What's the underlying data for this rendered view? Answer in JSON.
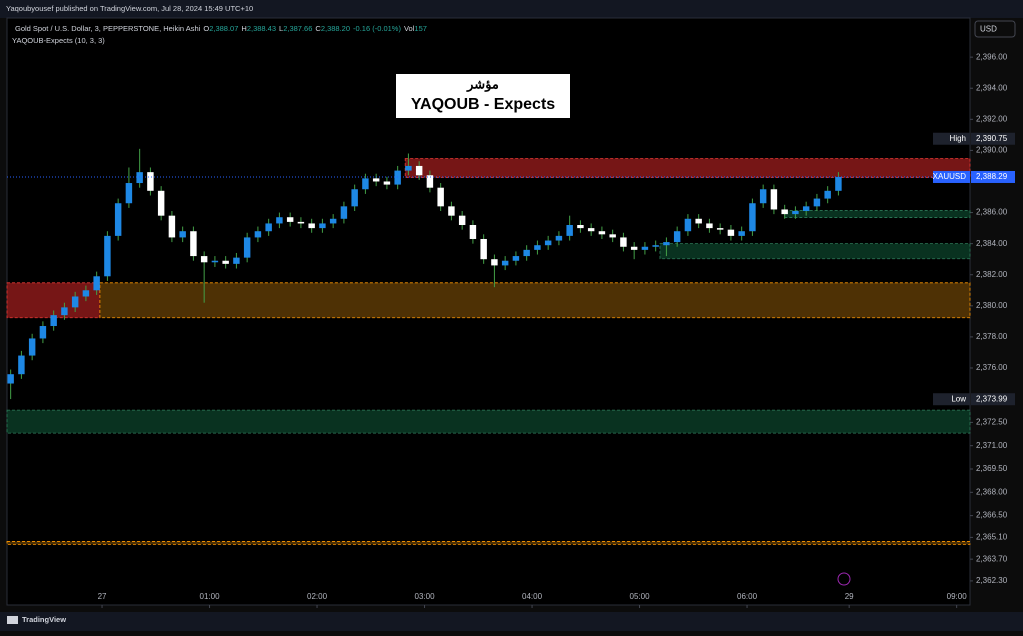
{
  "header": {
    "publisher": "Yaqoubyousef published on TradingView.com, Jul 28, 2024 15:49 UTC+10",
    "symbol": "Gold Spot / U.S. Dollar, 3, PEPPERSTONE, Heikin Ashi",
    "ohlc": [
      {
        "key": "O",
        "value": "2,388.07"
      },
      {
        "key": "H",
        "value": "2,388.43"
      },
      {
        "key": "L",
        "value": "2,387.66"
      },
      {
        "key": "C",
        "value": "2,388.20"
      }
    ],
    "change": "-0.16 (-0.01%)",
    "volume_key": "Vol",
    "volume": "157",
    "indicator": "YAQOUB-Expects (10, 3, 3)",
    "currency": "USD"
  },
  "footer": {
    "brand": "TradingView"
  },
  "chart_data": {
    "type": "candlestick",
    "title_arabic": "مؤشر",
    "title": "YAQOUB - Expects",
    "up_color": "#1e88e5",
    "down_color": "#ffffff",
    "wick_color": "#43a047",
    "x": [
      -0.85,
      -0.75,
      -0.65,
      -0.55,
      -0.45,
      -0.35,
      -0.25,
      -0.15,
      -0.05,
      0.05,
      0.15,
      0.25,
      0.35,
      0.45,
      0.55,
      0.65,
      0.75,
      0.85,
      0.95,
      1.05,
      1.15,
      1.25,
      1.35,
      1.45,
      1.55,
      1.65,
      1.75,
      1.85,
      1.95,
      2.05,
      2.15,
      2.25,
      2.35,
      2.45,
      2.55,
      2.65,
      2.75,
      2.85,
      2.95,
      3.05,
      3.15,
      3.25,
      3.35,
      3.45,
      3.55,
      3.65,
      3.75,
      3.85,
      3.95,
      4.05,
      4.15,
      4.25,
      4.35,
      4.45,
      4.55,
      4.65,
      4.75,
      4.85,
      4.95,
      5.05,
      5.15,
      5.25,
      5.35,
      5.45,
      5.55,
      5.65,
      5.75,
      5.85,
      5.95,
      6.05,
      6.15,
      6.25,
      6.35,
      6.45,
      6.55,
      6.65,
      6.75,
      6.85
    ],
    "open": [
      2375.0,
      2375.6,
      2376.8,
      2377.9,
      2378.7,
      2379.4,
      2379.9,
      2380.6,
      2381.0,
      2381.9,
      2384.5,
      2386.6,
      2387.9,
      2388.6,
      2387.4,
      2385.8,
      2384.4,
      2384.8,
      2383.2,
      2382.8,
      2382.9,
      2382.7,
      2383.1,
      2384.4,
      2384.8,
      2385.3,
      2385.7,
      2385.4,
      2385.3,
      2385.0,
      2385.3,
      2385.6,
      2386.4,
      2387.5,
      2388.2,
      2388.0,
      2387.8,
      2388.7,
      2389.0,
      2388.4,
      2387.6,
      2386.4,
      2385.8,
      2385.2,
      2384.3,
      2383.0,
      2382.6,
      2382.9,
      2383.2,
      2383.6,
      2383.9,
      2384.2,
      2384.5,
      2385.2,
      2385.0,
      2384.8,
      2384.6,
      2384.4,
      2383.8,
      2383.6,
      2383.8,
      2383.9,
      2384.1,
      2384.8,
      2385.6,
      2385.3,
      2385.0,
      2384.9,
      2384.5,
      2384.8,
      2386.6,
      2387.5,
      2386.2,
      2385.9,
      2386.1,
      2386.4,
      2386.9,
      2387.4
    ],
    "high": [
      2375.9,
      2377.1,
      2378.2,
      2379.0,
      2379.7,
      2380.2,
      2380.9,
      2381.3,
      2382.2,
      2384.8,
      2386.9,
      2388.9,
      2390.1,
      2388.9,
      2387.7,
      2386.1,
      2385.1,
      2385.1,
      2383.5,
      2383.2,
      2383.2,
      2383.4,
      2384.7,
      2385.1,
      2385.6,
      2386.0,
      2386.0,
      2385.7,
      2385.6,
      2385.6,
      2385.9,
      2386.7,
      2387.8,
      2388.5,
      2388.5,
      2388.3,
      2389.0,
      2389.8,
      2389.3,
      2388.7,
      2387.9,
      2386.7,
      2386.1,
      2385.5,
      2384.6,
      2383.3,
      2383.2,
      2383.5,
      2383.9,
      2384.2,
      2384.5,
      2384.8,
      2385.8,
      2385.5,
      2385.3,
      2385.1,
      2384.9,
      2384.7,
      2384.1,
      2384.1,
      2384.2,
      2384.4,
      2385.1,
      2385.9,
      2385.9,
      2385.6,
      2385.3,
      2385.2,
      2385.1,
      2386.9,
      2387.8,
      2387.8,
      2386.5,
      2386.4,
      2386.7,
      2387.2,
      2387.7,
      2388.6
    ],
    "low": [
      2374.0,
      2375.3,
      2376.5,
      2377.6,
      2378.4,
      2379.1,
      2379.6,
      2380.3,
      2380.7,
      2381.6,
      2384.2,
      2386.3,
      2387.6,
      2387.1,
      2385.5,
      2384.1,
      2384.1,
      2382.9,
      2380.2,
      2382.5,
      2382.4,
      2382.4,
      2382.8,
      2384.1,
      2384.5,
      2385.0,
      2385.1,
      2385.0,
      2384.7,
      2384.7,
      2385.0,
      2385.3,
      2386.1,
      2387.2,
      2387.7,
      2387.5,
      2387.5,
      2388.4,
      2388.1,
      2387.3,
      2386.1,
      2385.5,
      2384.9,
      2384.0,
      2382.7,
      2381.2,
      2382.3,
      2382.6,
      2382.9,
      2383.3,
      2383.6,
      2383.9,
      2384.2,
      2384.7,
      2384.5,
      2384.3,
      2384.1,
      2383.5,
      2383.0,
      2383.3,
      2383.5,
      2383.2,
      2383.8,
      2384.5,
      2385.0,
      2384.7,
      2384.6,
      2384.2,
      2384.2,
      2384.5,
      2386.3,
      2385.9,
      2385.6,
      2385.6,
      2385.8,
      2386.1,
      2386.6,
      2387.1
    ],
    "close": [
      2375.6,
      2376.8,
      2377.9,
      2378.7,
      2379.4,
      2379.9,
      2380.6,
      2381.0,
      2381.9,
      2384.5,
      2386.6,
      2387.9,
      2388.6,
      2387.4,
      2385.8,
      2384.4,
      2384.8,
      2383.2,
      2382.8,
      2382.9,
      2382.7,
      2383.1,
      2384.4,
      2384.8,
      2385.3,
      2385.7,
      2385.4,
      2385.3,
      2385.0,
      2385.3,
      2385.6,
      2386.4,
      2387.5,
      2388.2,
      2388.0,
      2387.8,
      2388.7,
      2389.0,
      2388.4,
      2387.6,
      2386.4,
      2385.8,
      2385.2,
      2384.3,
      2383.0,
      2382.6,
      2382.9,
      2383.2,
      2383.6,
      2383.9,
      2384.2,
      2384.5,
      2385.2,
      2385.0,
      2384.8,
      2384.6,
      2384.4,
      2383.8,
      2383.6,
      2383.8,
      2383.9,
      2384.1,
      2384.8,
      2385.6,
      2385.3,
      2385.0,
      2384.9,
      2384.5,
      2384.8,
      2386.6,
      2387.5,
      2386.2,
      2385.9,
      2386.1,
      2386.4,
      2386.9,
      2387.4,
      2388.29
    ],
    "zones": [
      {
        "color": "#8b1a1a",
        "border": "#e53935",
        "x": [
          2.82,
          8.074
        ],
        "y": [
          2388.26,
          2389.48
        ]
      },
      {
        "color": "#0b3b26",
        "border": "#2e7d5b",
        "x": [
          6.35,
          8.074
        ],
        "y": [
          2385.68,
          2386.13
        ]
      },
      {
        "color": "#0b3b26",
        "border": "#2e7d5b",
        "x": [
          5.19,
          8.074
        ],
        "y": [
          2383.03,
          2384.0
        ]
      },
      {
        "color": "#8b1a1a",
        "border": "#e53935",
        "x": [
          -0.884,
          -0.02
        ],
        "y": [
          2379.23,
          2381.48
        ]
      },
      {
        "color": "#5c3a06",
        "border": "#ff9800",
        "x": [
          -0.02,
          8.074
        ],
        "y": [
          2379.23,
          2381.48
        ]
      },
      {
        "color": "#0b3b26",
        "border": "#2e7d5b",
        "x": [
          -0.884,
          8.074
        ],
        "y": [
          2371.81,
          2373.29
        ]
      },
      {
        "color": "#5c3a06",
        "border": "#ff9800",
        "x": [
          -0.884,
          8.074
        ],
        "y": [
          2364.65,
          2364.84
        ]
      }
    ],
    "price_labels": [
      {
        "name": "High",
        "value": 2390.75,
        "label": "2,390.75",
        "color": "#1e222d"
      },
      {
        "name": "XAUUSD",
        "value": 2388.29,
        "label": "2,388.29",
        "color": "#2962ff"
      },
      {
        "name": "Low",
        "value": 2373.99,
        "label": "2,373.99",
        "color": "#1e222d"
      }
    ],
    "xlim": [
      -0.884,
      8.074
    ],
    "ylim": [
      2360.75,
      2398.39
    ],
    "xticks": [
      {
        "value": 0,
        "label": "27"
      },
      {
        "value": 1,
        "label": "01:00"
      },
      {
        "value": 2,
        "label": "02:00"
      },
      {
        "value": 3,
        "label": "03:00"
      },
      {
        "value": 4,
        "label": "04:00"
      },
      {
        "value": 5,
        "label": "05:00"
      },
      {
        "value": 6,
        "label": "06:00"
      },
      {
        "value": 6.95,
        "label": "29"
      },
      {
        "value": 7.95,
        "label": "09:00"
      }
    ],
    "yticks": [
      {
        "value": 2396,
        "label": "2,396.00"
      },
      {
        "value": 2394,
        "label": "2,394.00"
      },
      {
        "value": 2392,
        "label": "2,392.00"
      },
      {
        "value": 2390,
        "label": "2,390.00"
      },
      {
        "value": 2386,
        "label": "2,386.00"
      },
      {
        "value": 2384,
        "label": "2,384.00"
      },
      {
        "value": 2382,
        "label": "2,382.00"
      },
      {
        "value": 2380,
        "label": "2,380.00"
      },
      {
        "value": 2378,
        "label": "2,378.00"
      },
      {
        "value": 2376,
        "label": "2,376.00"
      },
      {
        "value": 2372.5,
        "label": "2,372.50"
      },
      {
        "value": 2371,
        "label": "2,371.00"
      },
      {
        "value": 2369.5,
        "label": "2,369.50"
      },
      {
        "value": 2368,
        "label": "2,368.00"
      },
      {
        "value": 2366.5,
        "label": "2,366.50"
      },
      {
        "value": 2365.1,
        "label": "2,365.10"
      },
      {
        "value": 2363.7,
        "label": "2,363.70"
      },
      {
        "value": 2362.3,
        "label": "2,362.30"
      }
    ]
  }
}
